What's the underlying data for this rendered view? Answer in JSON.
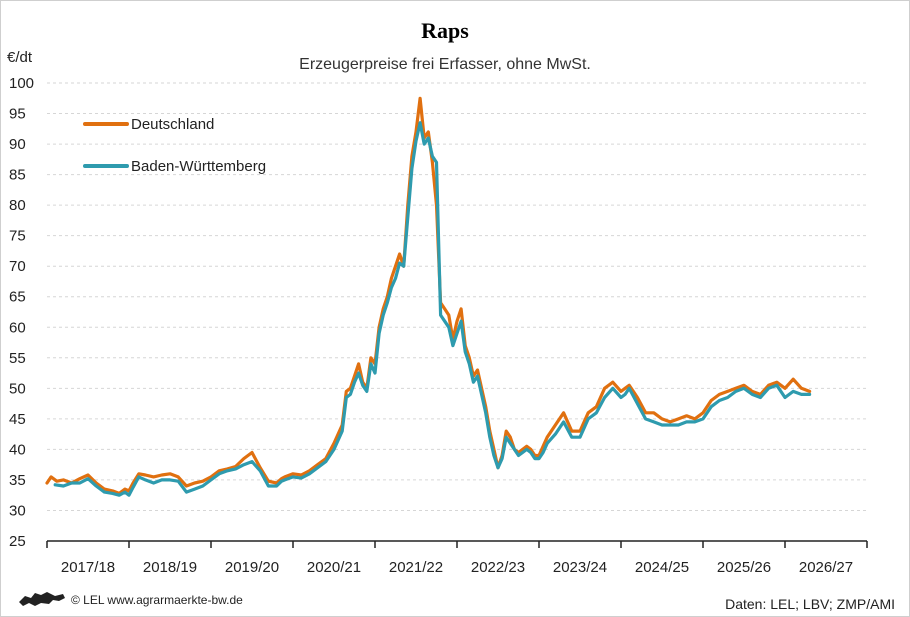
{
  "chart_data": {
    "type": "line",
    "title": "Raps",
    "subtitle": "Erzeugerpreise frei Erfasser, ohne MwSt.",
    "ylabel": "€/dt",
    "ylim": [
      25,
      100
    ],
    "yticks": [
      25,
      30,
      35,
      40,
      45,
      50,
      55,
      60,
      65,
      70,
      75,
      80,
      85,
      90,
      95,
      100
    ],
    "xlim": [
      0,
      10
    ],
    "categories": [
      "2017/18",
      "2018/19",
      "2019/20",
      "2020/21",
      "2021/22",
      "2022/23",
      "2023/24",
      "2024/25",
      "2025/26",
      "2026/27"
    ],
    "grid": "horizontal dashed",
    "legend_position": "top-left",
    "colors": {
      "deutschland": "#E07010",
      "bw": "#2E9BAE"
    },
    "series": [
      {
        "name": "Deutschland",
        "x": [
          0,
          0.05,
          0.12,
          0.2,
          0.3,
          0.4,
          0.5,
          0.6,
          0.7,
          0.8,
          0.88,
          0.95,
          1.0,
          1.05,
          1.12,
          1.2,
          1.3,
          1.4,
          1.5,
          1.6,
          1.7,
          1.8,
          1.9,
          2.0,
          2.1,
          2.2,
          2.3,
          2.4,
          2.5,
          2.6,
          2.7,
          2.8,
          2.86,
          2.9,
          3.0,
          3.1,
          3.2,
          3.3,
          3.4,
          3.5,
          3.6,
          3.65,
          3.7,
          3.75,
          3.8,
          3.85,
          3.9,
          3.95,
          4.0,
          4.05,
          4.1,
          4.15,
          4.2,
          4.25,
          4.3,
          4.35,
          4.4,
          4.45,
          4.5,
          4.55,
          4.6,
          4.65,
          4.7,
          4.75,
          4.8,
          4.85,
          4.9,
          4.95,
          5.0,
          5.05,
          5.1,
          5.15,
          5.2,
          5.25,
          5.3,
          5.35,
          5.4,
          5.45,
          5.5,
          5.55,
          5.6,
          5.65,
          5.7,
          5.75,
          5.8,
          5.85,
          5.9,
          5.95,
          6.0,
          6.05,
          6.1,
          6.2,
          6.3,
          6.4,
          6.5,
          6.6,
          6.7,
          6.8,
          6.9,
          7.0,
          7.05,
          7.1,
          7.2,
          7.3,
          7.4,
          7.5,
          7.6,
          7.7,
          7.8,
          7.9,
          8.0,
          8.1,
          8.2,
          8.3,
          8.4,
          8.5,
          8.6,
          8.7,
          8.8,
          8.9,
          9.0,
          9.1,
          9.2,
          9.3
        ],
        "values": [
          34.5,
          35.5,
          34.8,
          35,
          34.5,
          35.2,
          35.8,
          34.5,
          33.5,
          33.2,
          32.8,
          33.5,
          33.2,
          34.5,
          36,
          35.8,
          35.5,
          35.8,
          36,
          35.5,
          34,
          34.5,
          34.8,
          35.5,
          36.5,
          36.8,
          37.2,
          38.5,
          39.5,
          37,
          34.8,
          34.5,
          35.2,
          35.5,
          36,
          35.8,
          36.5,
          37.5,
          38.5,
          41,
          44,
          49.5,
          50,
          52,
          54,
          51,
          50,
          55,
          54,
          60,
          63,
          65,
          68,
          70,
          72,
          70,
          80,
          88,
          92,
          97.5,
          91,
          92,
          87,
          80,
          64,
          63,
          62,
          58,
          61,
          63,
          57,
          55,
          52,
          53,
          50,
          47,
          43,
          40,
          37,
          39,
          43,
          42,
          40,
          39.5,
          40,
          40.5,
          40,
          39,
          39,
          40.5,
          42,
          44,
          46,
          43,
          43,
          46,
          47,
          50,
          51,
          49.5,
          50,
          50.5,
          48.5,
          46,
          46,
          45,
          44.5,
          45,
          45.5,
          45,
          46,
          48,
          49,
          49.5,
          50,
          50.5,
          49.5,
          49,
          50.5,
          51,
          50,
          51.5,
          50,
          49.5
        ]
      },
      {
        "name": "Baden-Württemberg",
        "x": [
          0.1,
          0.2,
          0.3,
          0.4,
          0.5,
          0.6,
          0.7,
          0.8,
          0.88,
          0.95,
          1.0,
          1.05,
          1.12,
          1.2,
          1.3,
          1.4,
          1.5,
          1.6,
          1.7,
          1.8,
          1.9,
          2.0,
          2.1,
          2.2,
          2.3,
          2.4,
          2.5,
          2.6,
          2.7,
          2.8,
          2.86,
          2.9,
          3.0,
          3.1,
          3.2,
          3.3,
          3.4,
          3.5,
          3.6,
          3.65,
          3.7,
          3.75,
          3.8,
          3.85,
          3.9,
          3.95,
          4.0,
          4.05,
          4.1,
          4.15,
          4.2,
          4.25,
          4.3,
          4.35,
          4.4,
          4.45,
          4.5,
          4.55,
          4.6,
          4.65,
          4.7,
          4.75,
          4.8,
          4.85,
          4.9,
          4.95,
          5.0,
          5.05,
          5.1,
          5.15,
          5.2,
          5.25,
          5.3,
          5.35,
          5.4,
          5.45,
          5.5,
          5.55,
          5.6,
          5.65,
          5.7,
          5.75,
          5.8,
          5.85,
          5.9,
          5.95,
          6.0,
          6.05,
          6.1,
          6.2,
          6.3,
          6.4,
          6.5,
          6.6,
          6.7,
          6.8,
          6.9,
          7.0,
          7.05,
          7.1,
          7.2,
          7.3,
          7.4,
          7.5,
          7.6,
          7.7,
          7.8,
          7.9,
          8.0,
          8.1,
          8.2,
          8.3,
          8.4,
          8.5,
          8.6,
          8.7,
          8.8,
          8.9,
          9.0,
          9.1,
          9.2,
          9.3
        ],
        "values": [
          34.2,
          34,
          34.5,
          34.5,
          35.2,
          34,
          33,
          32.8,
          32.5,
          33,
          32.5,
          33.8,
          35.5,
          35,
          34.5,
          35,
          35,
          34.8,
          33,
          33.5,
          34,
          35,
          36,
          36.5,
          36.8,
          37.5,
          38,
          36.5,
          34,
          34,
          34.8,
          35,
          35.5,
          35.3,
          36,
          37,
          38,
          40,
          43,
          48.5,
          49,
          51,
          52.5,
          50.5,
          49.5,
          54,
          52.5,
          59,
          62,
          64,
          66.5,
          68,
          70.5,
          70,
          78,
          86,
          90.5,
          93.5,
          90,
          91,
          88,
          87,
          62,
          61,
          60,
          57,
          59,
          61,
          56,
          54,
          51,
          52,
          49,
          46,
          42,
          39,
          37,
          38.5,
          42,
          41,
          40,
          39,
          39.5,
          40,
          39.5,
          38.5,
          38.5,
          39.5,
          41,
          42.5,
          44.5,
          42,
          42,
          45,
          46,
          48.5,
          50,
          48.5,
          49,
          50,
          47.5,
          45,
          44.5,
          44,
          44,
          44,
          44.5,
          44.5,
          45,
          47,
          48,
          48.5,
          49.5,
          50,
          49,
          48.5,
          50,
          50.5,
          48.5,
          49.5,
          49,
          49
        ]
      }
    ]
  },
  "footer": {
    "copyright": "© LEL www.agrarmaerkte-bw.de",
    "source": "Daten: LEL; LBV; ZMP/AMI"
  }
}
